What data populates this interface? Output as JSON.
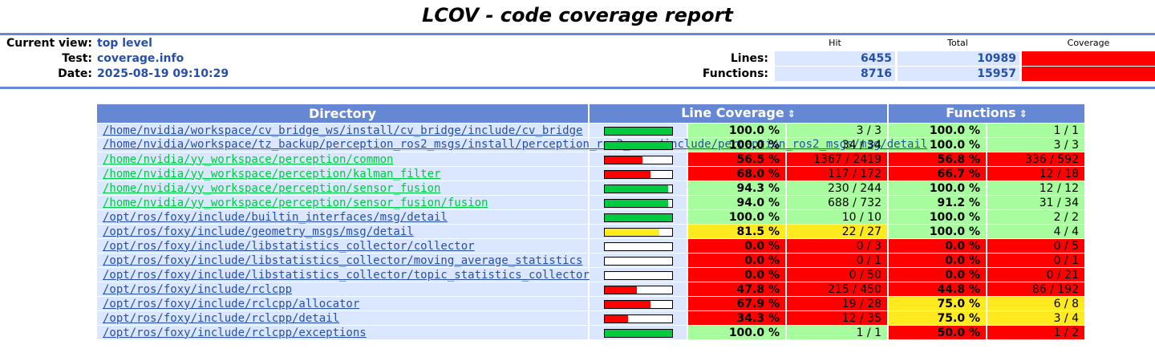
{
  "title": "LCOV - code coverage report",
  "header": {
    "current_view_label": "Current view:",
    "current_view_value": "top level",
    "test_label": "Test:",
    "test_value": "coverage.info",
    "date_label": "Date:",
    "date_value": "2025-08-19 09:10:29"
  },
  "summary": {
    "col_hit": "Hit",
    "col_total": "Total",
    "col_coverage": "Coverage",
    "lines_label": "Lines:",
    "lines_hit": "6455",
    "lines_total": "10989",
    "functions_label": "Functions:",
    "functions_hit": "8716",
    "functions_total": "15957"
  },
  "table": {
    "col_directory": "Directory",
    "col_line_coverage": "Line Coverage",
    "col_functions": "Functions",
    "sort_icon": "updown-arrows-icon",
    "rows": [
      {
        "path": "/home/nvidia/workspace/cv_bridge_ws/install/cv_bridge/include/cv_bridge",
        "line_pct": "100.0 %",
        "line_cnt": "3 / 3",
        "fn_pct": "100.0 %",
        "fn_cnt": "1 / 1",
        "bar": 1.0,
        "line_level": "hi",
        "fn_level": "hi",
        "link": "blue"
      },
      {
        "path": "/home/nvidia/workspace/tz_backup/perception_ros2_msgs/install/perception_ros2_msgs/include/perception_ros2_msgs/msg/detail",
        "line_pct": "100.0 %",
        "line_cnt": "34 / 34",
        "fn_pct": "100.0 %",
        "fn_cnt": "3 / 3",
        "bar": 1.0,
        "line_level": "hi",
        "fn_level": "hi",
        "link": "blue"
      },
      {
        "path": "/home/nvidia/yy_workspace/perception/common",
        "line_pct": "56.5 %",
        "line_cnt": "1367 / 2419",
        "fn_pct": "56.8 %",
        "fn_cnt": "336 / 592",
        "bar": 0.565,
        "line_level": "lo",
        "fn_level": "lo",
        "link": "green"
      },
      {
        "path": "/home/nvidia/yy_workspace/perception/kalman_filter",
        "line_pct": "68.0 %",
        "line_cnt": "117 / 172",
        "fn_pct": "66.7 %",
        "fn_cnt": "12 / 18",
        "bar": 0.68,
        "line_level": "lo",
        "fn_level": "lo",
        "link": "green"
      },
      {
        "path": "/home/nvidia/yy_workspace/perception/sensor_fusion",
        "line_pct": "94.3 %",
        "line_cnt": "230 / 244",
        "fn_pct": "100.0 %",
        "fn_cnt": "12 / 12",
        "bar": 0.943,
        "line_level": "hi",
        "fn_level": "hi",
        "link": "green"
      },
      {
        "path": "/home/nvidia/yy_workspace/perception/sensor_fusion/fusion",
        "line_pct": "94.0 %",
        "line_cnt": "688 / 732",
        "fn_pct": "91.2 %",
        "fn_cnt": "31 / 34",
        "bar": 0.94,
        "line_level": "hi",
        "fn_level": "hi",
        "link": "green"
      },
      {
        "path": "/opt/ros/foxy/include/builtin_interfaces/msg/detail",
        "line_pct": "100.0 %",
        "line_cnt": "10 / 10",
        "fn_pct": "100.0 %",
        "fn_cnt": "2 / 2",
        "bar": 1.0,
        "line_level": "hi",
        "fn_level": "hi",
        "link": "blue"
      },
      {
        "path": "/opt/ros/foxy/include/geometry_msgs/msg/detail",
        "line_pct": "81.5 %",
        "line_cnt": "22 / 27",
        "fn_pct": "100.0 %",
        "fn_cnt": "4 / 4",
        "bar": 0.815,
        "line_level": "med",
        "fn_level": "hi",
        "link": "blue"
      },
      {
        "path": "/opt/ros/foxy/include/libstatistics_collector/collector",
        "line_pct": "0.0 %",
        "line_cnt": "0 / 3",
        "fn_pct": "0.0 %",
        "fn_cnt": "0 / 5",
        "bar": 0.0,
        "line_level": "lo",
        "fn_level": "lo",
        "link": "blue"
      },
      {
        "path": "/opt/ros/foxy/include/libstatistics_collector/moving_average_statistics",
        "line_pct": "0.0 %",
        "line_cnt": "0 / 1",
        "fn_pct": "0.0 %",
        "fn_cnt": "0 / 1",
        "bar": 0.0,
        "line_level": "lo",
        "fn_level": "lo",
        "link": "blue"
      },
      {
        "path": "/opt/ros/foxy/include/libstatistics_collector/topic_statistics_collector",
        "line_pct": "0.0 %",
        "line_cnt": "0 / 50",
        "fn_pct": "0.0 %",
        "fn_cnt": "0 / 21",
        "bar": 0.0,
        "line_level": "lo",
        "fn_level": "lo",
        "link": "blue"
      },
      {
        "path": "/opt/ros/foxy/include/rclcpp",
        "line_pct": "47.8 %",
        "line_cnt": "215 / 450",
        "fn_pct": "44.8 %",
        "fn_cnt": "86 / 192",
        "bar": 0.478,
        "line_level": "lo",
        "fn_level": "lo",
        "link": "blue"
      },
      {
        "path": "/opt/ros/foxy/include/rclcpp/allocator",
        "line_pct": "67.9 %",
        "line_cnt": "19 / 28",
        "fn_pct": "75.0 %",
        "fn_cnt": "6 / 8",
        "bar": 0.679,
        "line_level": "lo",
        "fn_level": "med",
        "link": "blue"
      },
      {
        "path": "/opt/ros/foxy/include/rclcpp/detail",
        "line_pct": "34.3 %",
        "line_cnt": "12 / 35",
        "fn_pct": "75.0 %",
        "fn_cnt": "3 / 4",
        "bar": 0.343,
        "line_level": "lo",
        "fn_level": "med",
        "link": "blue"
      },
      {
        "path": "/opt/ros/foxy/include/rclcpp/exceptions",
        "line_pct": "100.0 %",
        "line_cnt": "1 / 1",
        "fn_pct": "50.0 %",
        "fn_cnt": "1 / 2",
        "bar": 1.0,
        "line_level": "hi",
        "fn_level": "lo",
        "link": "blue"
      }
    ]
  },
  "colors": {
    "header_blue": "#6688d4",
    "cell_light_blue": "#dae7fe",
    "hi": "#a7fc9d",
    "med": "#ffea20",
    "lo": "#ff0000",
    "bar_hi": "#00cb40",
    "bar_med": "#ffea20",
    "bar_lo": "#ff0000"
  }
}
